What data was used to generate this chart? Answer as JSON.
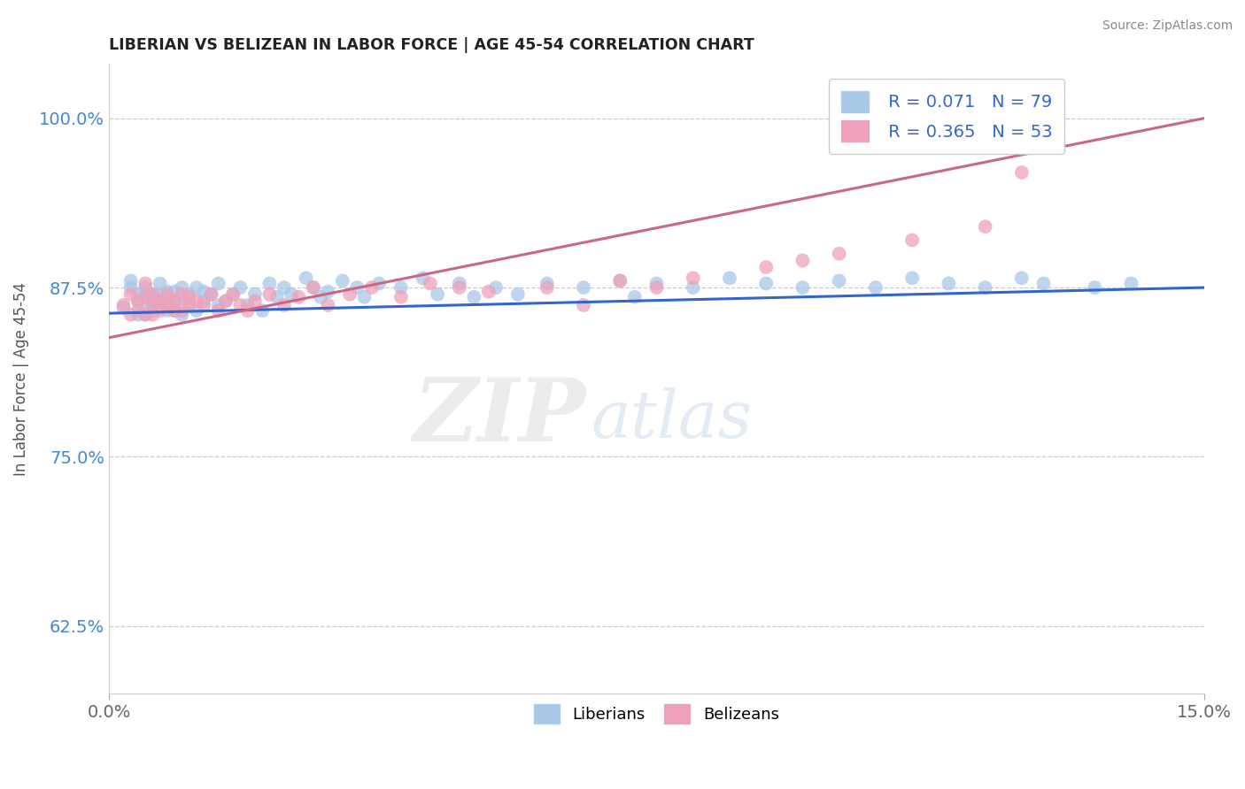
{
  "title": "LIBERIAN VS BELIZEAN IN LABOR FORCE | AGE 45-54 CORRELATION CHART",
  "source_text": "Source: ZipAtlas.com",
  "ylabel": "In Labor Force | Age 45-54",
  "xlim": [
    0.0,
    0.15
  ],
  "ylim": [
    0.575,
    1.04
  ],
  "yticks": [
    0.625,
    0.75,
    0.875,
    1.0
  ],
  "ytick_labels": [
    "62.5%",
    "75.0%",
    "87.5%",
    "100.0%"
  ],
  "xticks": [
    0.0,
    0.15
  ],
  "xtick_labels": [
    "0.0%",
    "15.0%"
  ],
  "legend_r1": "R = 0.071",
  "legend_n1": "N = 79",
  "legend_r2": "R = 0.365",
  "legend_n2": "N = 53",
  "blue_color": "#a8c8e8",
  "pink_color": "#f0a0b8",
  "blue_line_color": "#3366cc",
  "pink_line_color": "#cc6688",
  "watermark_zip": "ZIP",
  "watermark_atlas": "atlas",
  "liberian_x": [
    0.002,
    0.003,
    0.003,
    0.004,
    0.004,
    0.004,
    0.005,
    0.005,
    0.005,
    0.005,
    0.006,
    0.006,
    0.006,
    0.006,
    0.007,
    0.007,
    0.007,
    0.008,
    0.008,
    0.008,
    0.008,
    0.009,
    0.009,
    0.009,
    0.01,
    0.01,
    0.01,
    0.011,
    0.011,
    0.012,
    0.012,
    0.013,
    0.013,
    0.014,
    0.015,
    0.015,
    0.016,
    0.017,
    0.018,
    0.019,
    0.02,
    0.021,
    0.022,
    0.023,
    0.024,
    0.025,
    0.027,
    0.028,
    0.029,
    0.03,
    0.032,
    0.034,
    0.035,
    0.037,
    0.04,
    0.043,
    0.045,
    0.048,
    0.05,
    0.053,
    0.056,
    0.06,
    0.065,
    0.07,
    0.072,
    0.075,
    0.08,
    0.085,
    0.09,
    0.095,
    0.1,
    0.105,
    0.11,
    0.115,
    0.12,
    0.125,
    0.128,
    0.135,
    0.14
  ],
  "liberian_y": [
    0.86,
    0.875,
    0.88,
    0.87,
    0.855,
    0.865,
    0.875,
    0.86,
    0.855,
    0.87,
    0.862,
    0.87,
    0.858,
    0.865,
    0.87,
    0.865,
    0.878,
    0.862,
    0.868,
    0.872,
    0.858,
    0.865,
    0.872,
    0.858,
    0.868,
    0.875,
    0.855,
    0.87,
    0.862,
    0.875,
    0.858,
    0.865,
    0.872,
    0.87,
    0.862,
    0.878,
    0.865,
    0.87,
    0.875,
    0.862,
    0.87,
    0.858,
    0.878,
    0.868,
    0.875,
    0.87,
    0.882,
    0.875,
    0.868,
    0.872,
    0.88,
    0.875,
    0.868,
    0.878,
    0.875,
    0.882,
    0.87,
    0.878,
    0.868,
    0.875,
    0.87,
    0.878,
    0.875,
    0.88,
    0.868,
    0.878,
    0.875,
    0.882,
    0.878,
    0.875,
    0.88,
    0.875,
    0.882,
    0.878,
    0.875,
    0.882,
    0.878,
    0.875,
    0.878
  ],
  "belizean_x": [
    0.002,
    0.003,
    0.003,
    0.004,
    0.004,
    0.005,
    0.005,
    0.005,
    0.006,
    0.006,
    0.006,
    0.007,
    0.007,
    0.008,
    0.008,
    0.009,
    0.009,
    0.01,
    0.01,
    0.011,
    0.011,
    0.012,
    0.013,
    0.014,
    0.015,
    0.016,
    0.017,
    0.018,
    0.019,
    0.02,
    0.022,
    0.024,
    0.026,
    0.028,
    0.03,
    0.033,
    0.036,
    0.04,
    0.044,
    0.048,
    0.052,
    0.06,
    0.065,
    0.07,
    0.075,
    0.08,
    0.09,
    0.095,
    0.1,
    0.11,
    0.12,
    0.125,
    0.13
  ],
  "belizean_y": [
    0.862,
    0.87,
    0.855,
    0.865,
    0.858,
    0.868,
    0.855,
    0.878,
    0.862,
    0.87,
    0.855,
    0.865,
    0.858,
    0.87,
    0.862,
    0.858,
    0.865,
    0.87,
    0.858,
    0.862,
    0.868,
    0.865,
    0.862,
    0.87,
    0.858,
    0.865,
    0.87,
    0.862,
    0.858,
    0.865,
    0.87,
    0.862,
    0.868,
    0.875,
    0.862,
    0.87,
    0.875,
    0.868,
    0.878,
    0.875,
    0.872,
    0.875,
    0.862,
    0.88,
    0.875,
    0.882,
    0.89,
    0.895,
    0.9,
    0.91,
    0.92,
    0.96,
    1.0
  ],
  "blue_line_y0": 0.856,
  "blue_line_y1": 0.875,
  "pink_line_y0": 0.838,
  "pink_line_y1": 1.0
}
